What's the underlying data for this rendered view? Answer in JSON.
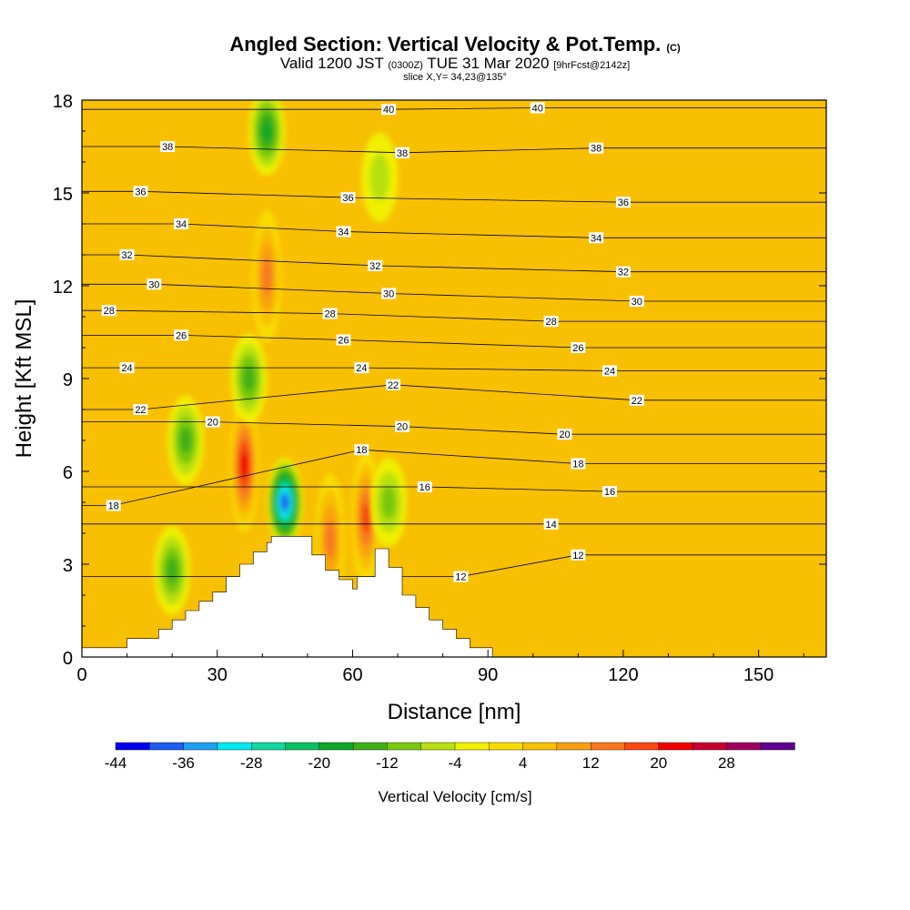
{
  "title": {
    "main": "Angled Section: Vertical Velocity & Pot.Temp.",
    "main_unit": "(C)",
    "valid_prefix": "Valid 1200 JST",
    "valid_z": "(0300Z)",
    "valid_date": "TUE 31 Mar 2020",
    "fcst": "[9hrFcst@2142z]",
    "slice": "slice X,Y= 34,23@135°"
  },
  "chart_data": {
    "type": "heatmap",
    "title": "Angled Section: Vertical Velocity & Pot.Temp.",
    "xlabel": "Distance [nm]",
    "ylabel": "Height [Kft MSL]",
    "xlim": [
      0,
      165
    ],
    "ylim": [
      0,
      18
    ],
    "x_ticks": [
      "0",
      "30",
      "60",
      "90",
      "120",
      "150"
    ],
    "x_tick_values": [
      0,
      30,
      60,
      90,
      120,
      150
    ],
    "y_ticks": [
      "0",
      "3",
      "6",
      "9",
      "12",
      "15",
      "18"
    ],
    "y_tick_values": [
      0,
      3,
      6,
      9,
      12,
      15,
      18
    ],
    "colorbar": {
      "label": "Vertical Velocity [cm/s]",
      "tick_labels": [
        "-44",
        "-36",
        "-28",
        "-20",
        "-12",
        "-4",
        "4",
        "12",
        "20",
        "28"
      ],
      "tick_values": [
        -44,
        -36,
        -28,
        -20,
        -12,
        -4,
        4,
        12,
        20,
        28
      ],
      "bins": [
        -44,
        -40,
        -36,
        -32,
        -28,
        -24,
        -20,
        -16,
        -12,
        -8,
        -4,
        0,
        4,
        8,
        12,
        16,
        20,
        24,
        28,
        32
      ],
      "colors": [
        "#0000ee",
        "#1c5cf0",
        "#1ea0f0",
        "#00e8f0",
        "#10d8a0",
        "#08c060",
        "#10a828",
        "#40b018",
        "#78c810",
        "#b8e010",
        "#f0f000",
        "#f8dc00",
        "#f8c000",
        "#f8a010",
        "#f87820",
        "#f84810",
        "#f00000",
        "#c80030",
        "#a00060",
        "#600090"
      ]
    },
    "terrain_profile": {
      "x": [
        0,
        10,
        10,
        17,
        17,
        20,
        20,
        23,
        23,
        26,
        26,
        29,
        29,
        32,
        32,
        35,
        35,
        38,
        38,
        41,
        41,
        42,
        42,
        51,
        51,
        54,
        54,
        57,
        57,
        60,
        60,
        61,
        61,
        65,
        65,
        68,
        68,
        71,
        71,
        74,
        74,
        77,
        77,
        80,
        80,
        83,
        83,
        86,
        86,
        91,
        91
      ],
      "y": [
        0.3,
        0.3,
        0.6,
        0.6,
        0.9,
        0.9,
        1.2,
        1.2,
        1.5,
        1.5,
        1.8,
        1.8,
        2.1,
        2.1,
        2.6,
        2.6,
        3.0,
        3.0,
        3.4,
        3.4,
        3.7,
        3.7,
        3.9,
        3.9,
        3.3,
        3.3,
        2.8,
        2.8,
        2.5,
        2.5,
        2.2,
        2.2,
        2.6,
        2.6,
        3.5,
        3.5,
        2.9,
        2.9,
        2.0,
        2.0,
        1.6,
        1.6,
        1.2,
        1.2,
        0.9,
        0.9,
        0.6,
        0.6,
        0.3,
        0.3,
        0.0
      ]
    },
    "velocity_features": [
      {
        "kind": "updraft",
        "x": 36,
        "y": 6.2,
        "peak": 24
      },
      {
        "kind": "updraft",
        "x": 41,
        "y": 12.3,
        "peak": 16
      },
      {
        "kind": "updraft",
        "x": 63,
        "y": 4.5,
        "peak": 22
      },
      {
        "kind": "updraft",
        "x": 55,
        "y": 3.8,
        "peak": 18
      },
      {
        "kind": "downdraft",
        "x": 45,
        "y": 5.0,
        "peak": -40
      },
      {
        "kind": "downdraft",
        "x": 37,
        "y": 9.0,
        "peak": -18
      },
      {
        "kind": "downdraft",
        "x": 41,
        "y": 17.0,
        "peak": -20
      },
      {
        "kind": "downdraft",
        "x": 23,
        "y": 7.0,
        "peak": -16
      },
      {
        "kind": "downdraft",
        "x": 20,
        "y": 2.8,
        "peak": -16
      },
      {
        "kind": "downdraft",
        "x": 68,
        "y": 5.0,
        "peak": -14
      },
      {
        "kind": "downdraft",
        "x": 66,
        "y": 15.5,
        "peak": -10
      }
    ],
    "theta_contours": {
      "unit": "C",
      "levels": [
        12,
        14,
        16,
        18,
        20,
        22,
        24,
        26,
        28,
        30,
        32,
        34,
        36,
        38,
        40
      ],
      "labels": [
        {
          "value": "40",
          "x": 68,
          "y": 17.7
        },
        {
          "value": "40",
          "x": 101,
          "y": 17.75
        },
        {
          "value": "38",
          "x": 19,
          "y": 16.5
        },
        {
          "value": "38",
          "x": 71,
          "y": 16.3
        },
        {
          "value": "38",
          "x": 114,
          "y": 16.45
        },
        {
          "value": "36",
          "x": 13,
          "y": 15.05
        },
        {
          "value": "36",
          "x": 59,
          "y": 14.85
        },
        {
          "value": "36",
          "x": 120,
          "y": 14.7
        },
        {
          "value": "34",
          "x": 22,
          "y": 14.0
        },
        {
          "value": "34",
          "x": 58,
          "y": 13.75
        },
        {
          "value": "34",
          "x": 114,
          "y": 13.55
        },
        {
          "value": "32",
          "x": 10,
          "y": 13.0
        },
        {
          "value": "32",
          "x": 65,
          "y": 12.65
        },
        {
          "value": "32",
          "x": 120,
          "y": 12.45
        },
        {
          "value": "30",
          "x": 16,
          "y": 12.05
        },
        {
          "value": "30",
          "x": 68,
          "y": 11.75
        },
        {
          "value": "30",
          "x": 123,
          "y": 11.5
        },
        {
          "value": "28",
          "x": 6,
          "y": 11.2
        },
        {
          "value": "28",
          "x": 55,
          "y": 11.1
        },
        {
          "value": "28",
          "x": 104,
          "y": 10.85
        },
        {
          "value": "26",
          "x": 22,
          "y": 10.4
        },
        {
          "value": "26",
          "x": 58,
          "y": 10.25
        },
        {
          "value": "26",
          "x": 110,
          "y": 10.0
        },
        {
          "value": "24",
          "x": 10,
          "y": 9.35
        },
        {
          "value": "24",
          "x": 62,
          "y": 9.35
        },
        {
          "value": "24",
          "x": 117,
          "y": 9.25
        },
        {
          "value": "22",
          "x": 13,
          "y": 8.0
        },
        {
          "value": "22",
          "x": 69,
          "y": 8.8
        },
        {
          "value": "22",
          "x": 123,
          "y": 8.3
        },
        {
          "value": "20",
          "x": 29,
          "y": 7.6
        },
        {
          "value": "20",
          "x": 71,
          "y": 7.45
        },
        {
          "value": "20",
          "x": 107,
          "y": 7.2
        },
        {
          "value": "18",
          "x": 7,
          "y": 4.9
        },
        {
          "value": "18",
          "x": 62,
          "y": 6.7
        },
        {
          "value": "18",
          "x": 110,
          "y": 6.25
        },
        {
          "value": "16",
          "x": 76,
          "y": 5.5
        },
        {
          "value": "16",
          "x": 117,
          "y": 5.35
        },
        {
          "value": "14",
          "x": 104,
          "y": 4.3
        },
        {
          "value": "12",
          "x": 84,
          "y": 2.6
        },
        {
          "value": "12",
          "x": 110,
          "y": 3.3
        }
      ]
    }
  }
}
